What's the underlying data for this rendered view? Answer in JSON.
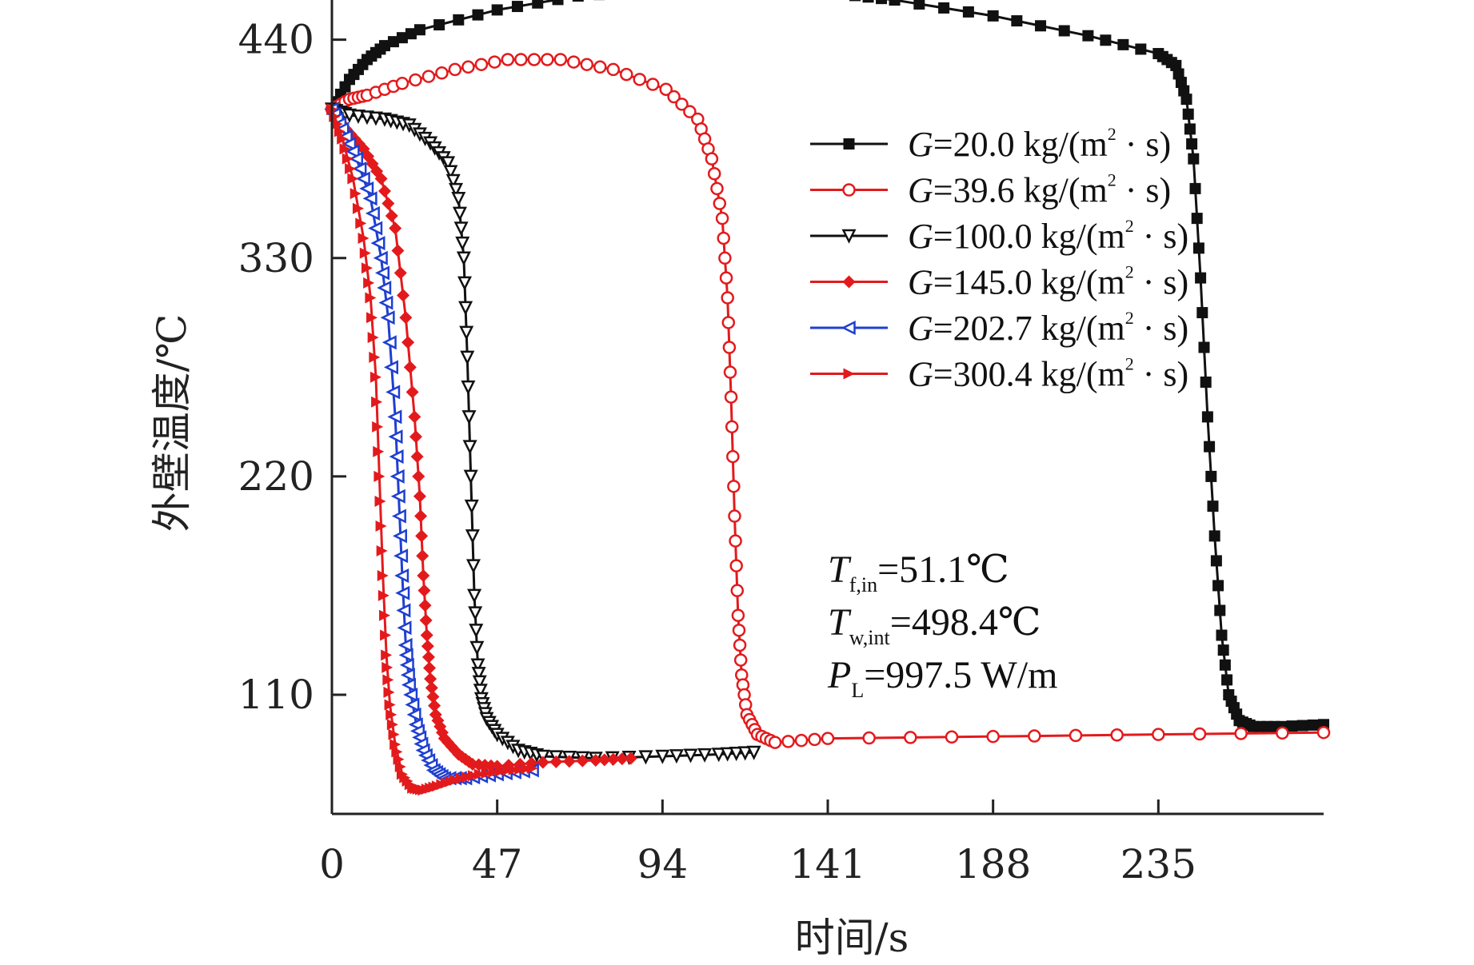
{
  "chart_data": {
    "type": "line",
    "title": "",
    "xlabel": "时间/s",
    "ylabel": "外壁温度/℃",
    "xlim": [
      0,
      282
    ],
    "ylim": [
      50,
      460
    ],
    "xticks": [
      "0",
      "47",
      "94",
      "141",
      "188",
      "235"
    ],
    "yticks": [
      "110",
      "220",
      "330",
      "440"
    ],
    "legend_position": "top-right",
    "series": [
      {
        "name": "G=20.0 kg/(m²·s)",
        "label_parts": {
          "var": "G",
          "rest": "=20.0 kg/(m",
          "sup": "2",
          "tail": " · s)"
        },
        "color": "#111111",
        "marker": "square-filled",
        "x": [
          0,
          5,
          10,
          15,
          25,
          47,
          70,
          94,
          115,
          130,
          145,
          160,
          188,
          215,
          235,
          240,
          243,
          245,
          247,
          249,
          251,
          253,
          255,
          258,
          262,
          270,
          282
        ],
        "y": [
          405,
          420,
          430,
          437,
          445,
          455,
          462,
          465,
          466,
          466,
          463,
          460,
          452,
          442,
          433,
          427,
          410,
          380,
          320,
          250,
          190,
          140,
          110,
          97,
          94,
          94,
          95
        ]
      },
      {
        "name": "G=39.6 kg/(m²·s)",
        "label_parts": {
          "var": "G",
          "rest": "=39.6 kg/(m",
          "sup": "2",
          "tail": " · s)"
        },
        "color": "#e31a1c",
        "marker": "circle-open",
        "x": [
          0,
          5,
          10,
          20,
          35,
          50,
          65,
          80,
          95,
          104,
          108,
          111,
          112.5,
          113.5,
          114.5,
          115.5,
          116.5,
          118,
          121,
          126,
          141,
          188,
          235,
          282
        ],
        "y": [
          405,
          410,
          412,
          418,
          425,
          430,
          430,
          425,
          415,
          400,
          380,
          350,
          310,
          260,
          200,
          150,
          120,
          100,
          90,
          86,
          88,
          89,
          90,
          91
        ]
      },
      {
        "name": "G=100.0 kg/(m²·s)",
        "label_parts": {
          "var": "G",
          "rest": "=100.0 kg/(m",
          "sup": "2",
          "tail": " · s)"
        },
        "color": "#111111",
        "marker": "triangle-down-open",
        "x": [
          0,
          5,
          15,
          22,
          28,
          33,
          36,
          37.5,
          38.5,
          39.5,
          40.5,
          41.5,
          42.5,
          44,
          47,
          53,
          60,
          75,
          94,
          110,
          120
        ],
        "y": [
          405,
          402,
          400,
          397,
          388,
          378,
          360,
          330,
          280,
          220,
          160,
          125,
          108,
          98,
          90,
          82,
          79,
          78,
          79,
          80,
          81
        ]
      },
      {
        "name": "G=145.0 kg/(m²·s)",
        "label_parts": {
          "var": "G",
          "rest": "=145.0 kg/(m",
          "sup": "2",
          "tail": " · s)"
        },
        "color": "#e31a1c",
        "marker": "diamond-filled",
        "x": [
          0,
          4,
          9,
          14,
          18,
          21,
          23.5,
          25,
          26,
          27,
          28,
          29.5,
          32,
          36,
          40,
          47,
          60,
          75,
          85
        ],
        "y": [
          405,
          395,
          385,
          370,
          345,
          300,
          250,
          210,
          170,
          140,
          118,
          100,
          88,
          80,
          75,
          74,
          76,
          77,
          78
        ]
      },
      {
        "name": "G=202.7 kg/(m²·s)",
        "label_parts": {
          "var": "G",
          "rest": "=202.7 kg/(m",
          "sup": "2",
          "tail": " · s)"
        },
        "color": "#1f3fd1",
        "marker": "triangle-left-open",
        "x": [
          0,
          3,
          7,
          11,
          14,
          16,
          18,
          19,
          20,
          21,
          22,
          24,
          26,
          29,
          32,
          38,
          47,
          57
        ],
        "y": [
          405,
          395,
          380,
          360,
          330,
          300,
          250,
          210,
          170,
          135,
          115,
          95,
          82,
          72,
          68,
          68,
          70,
          72
        ]
      },
      {
        "name": "G=300.4 kg/(m²·s)",
        "label_parts": {
          "var": "G",
          "rest": "=300.4 kg/(m",
          "sup": "2",
          "tail": " · s)"
        },
        "color": "#e31a1c",
        "marker": "triangle-right-filled",
        "x": [
          0,
          3,
          6,
          9,
          11,
          12.5,
          13.5,
          14.5,
          15.5,
          16.5,
          18,
          20,
          23,
          26,
          30,
          35,
          42,
          50,
          57
        ],
        "y": [
          405,
          390,
          370,
          340,
          310,
          270,
          220,
          170,
          130,
          105,
          85,
          70,
          63,
          62,
          64,
          67,
          70,
          72,
          73
        ]
      }
    ],
    "annotations": [
      {
        "var": "T",
        "sub": "f,in",
        "rest": "=51.1℃"
      },
      {
        "var": "T",
        "sub": "w,int",
        "rest": "=498.4℃"
      },
      {
        "var": "P",
        "sub": "L",
        "rest": "=997.5 W/m"
      }
    ]
  }
}
